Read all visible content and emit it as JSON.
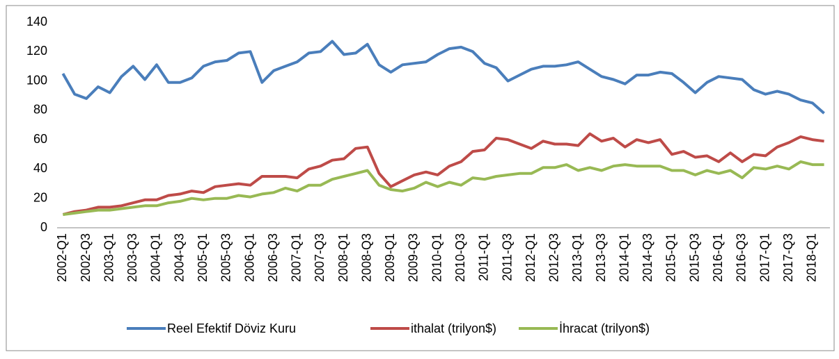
{
  "chart_data": {
    "type": "line",
    "categories": [
      "2002-Q1",
      null,
      "2002-Q3",
      null,
      "2003-Q1",
      null,
      "2003-Q3",
      null,
      "2004-Q1",
      null,
      "2004-Q3",
      null,
      "2005-Q1",
      null,
      "2005-Q3",
      null,
      "2006-Q1",
      null,
      "2006-Q3",
      null,
      "2007-Q1",
      null,
      "2007-Q3",
      null,
      "2008-Q1",
      null,
      "2008-Q3",
      null,
      "2009-Q1",
      null,
      "2009-Q3",
      null,
      "2010-Q1",
      null,
      "2010-Q3",
      null,
      "2011-Q1",
      null,
      "2011-Q3",
      null,
      "2012-Q1",
      null,
      "2012-Q3",
      null,
      "2013-Q1",
      null,
      "2013-Q3",
      null,
      "2014-Q1",
      null,
      "2014-Q3",
      null,
      "2015-Q1",
      null,
      "2015-Q3",
      null,
      "2016-Q1",
      null,
      "2016-Q3",
      null,
      "2017-Q1",
      null,
      "2017-Q3",
      null,
      "2018-Q1",
      null
    ],
    "series": [
      {
        "name": "Reel Efektif Döviz Kuru",
        "color": "#4a7ebb",
        "values": [
          105,
          91,
          88,
          96,
          92,
          103,
          110,
          101,
          111,
          99,
          99,
          102,
          110,
          113,
          114,
          119,
          120,
          99,
          107,
          110,
          113,
          119,
          120,
          127,
          118,
          119,
          125,
          111,
          106,
          111,
          112,
          113,
          118,
          122,
          123,
          120,
          112,
          109,
          100,
          104,
          108,
          110,
          110,
          111,
          113,
          108,
          103,
          101,
          98,
          104,
          104,
          106,
          105,
          99,
          92,
          99,
          103,
          102,
          101,
          94,
          91,
          93,
          91,
          87,
          85,
          78
        ]
      },
      {
        "name": "ithalat (trilyon$)",
        "color": "#be4b48",
        "values": [
          9,
          11,
          12,
          14,
          14,
          15,
          17,
          19,
          19,
          22,
          23,
          25,
          24,
          28,
          29,
          30,
          29,
          35,
          35,
          35,
          34,
          40,
          42,
          46,
          47,
          54,
          55,
          37,
          28,
          32,
          36,
          38,
          36,
          42,
          45,
          52,
          53,
          61,
          60,
          57,
          54,
          59,
          57,
          57,
          56,
          64,
          59,
          61,
          55,
          60,
          58,
          60,
          50,
          52,
          48,
          49,
          45,
          51,
          45,
          50,
          49,
          55,
          58,
          62,
          60,
          59
        ]
      },
      {
        "name": "İhracat (trilyon$)",
        "color": "#98b954",
        "values": [
          9,
          10,
          11,
          12,
          12,
          13,
          14,
          15,
          15,
          17,
          18,
          20,
          19,
          20,
          20,
          22,
          21,
          23,
          24,
          27,
          25,
          29,
          29,
          33,
          35,
          37,
          39,
          29,
          26,
          25,
          27,
          31,
          28,
          31,
          29,
          34,
          33,
          35,
          36,
          37,
          37,
          41,
          41,
          43,
          39,
          41,
          39,
          42,
          43,
          42,
          42,
          42,
          39,
          39,
          36,
          39,
          37,
          39,
          34,
          41,
          40,
          42,
          40,
          45,
          43,
          43
        ]
      }
    ],
    "ylim": [
      0,
      140
    ],
    "yticks": [
      0,
      20,
      40,
      60,
      80,
      100,
      120,
      140
    ],
    "grid": false,
    "legend": "bottom"
  }
}
